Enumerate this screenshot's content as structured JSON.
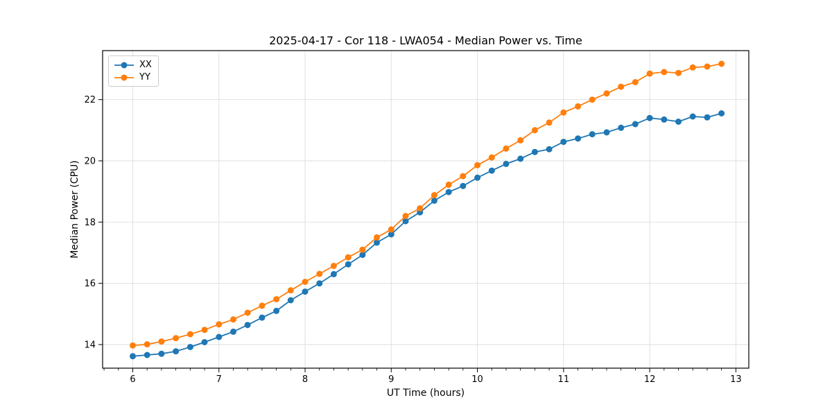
{
  "chart_data": {
    "type": "line",
    "title": "2025-04-17 - Cor 118 - LWA054 - Median Power vs. Time",
    "xlabel": "UT Time (hours)",
    "ylabel": "Median Power (CPU)",
    "xlim": [
      5.65,
      13.15
    ],
    "ylim": [
      13.23,
      23.6
    ],
    "x_ticks": [
      6,
      7,
      8,
      9,
      10,
      11,
      12,
      13
    ],
    "y_ticks": [
      14,
      16,
      18,
      20,
      22
    ],
    "x_minor_step": 0.166667,
    "grid": true,
    "legend_position": "upper left",
    "grid_color": "#dddddd",
    "spine_color": "#000000",
    "x": [
      6.0,
      6.167,
      6.333,
      6.5,
      6.667,
      6.833,
      7.0,
      7.167,
      7.333,
      7.5,
      7.667,
      7.833,
      8.0,
      8.167,
      8.333,
      8.5,
      8.667,
      8.833,
      9.0,
      9.167,
      9.333,
      9.5,
      9.667,
      9.833,
      10.0,
      10.167,
      10.333,
      10.5,
      10.667,
      10.833,
      11.0,
      11.167,
      11.333,
      11.5,
      11.667,
      11.833,
      12.0,
      12.167,
      12.333,
      12.5,
      12.667,
      12.833
    ],
    "series": [
      {
        "name": "XX",
        "color": "#1f77b4",
        "values": [
          13.62,
          13.66,
          13.7,
          13.78,
          13.92,
          14.08,
          14.25,
          14.42,
          14.64,
          14.88,
          15.1,
          15.45,
          15.73,
          16.0,
          16.3,
          16.62,
          16.93,
          17.33,
          17.6,
          18.03,
          18.32,
          18.7,
          18.98,
          19.18,
          19.45,
          19.68,
          19.9,
          20.07,
          20.29,
          20.38,
          20.62,
          20.73,
          20.87,
          20.93,
          21.08,
          21.2,
          21.4,
          21.35,
          21.28,
          21.45,
          21.42,
          21.55
        ]
      },
      {
        "name": "YY",
        "color": "#ff7f0e",
        "values": [
          13.97,
          14.01,
          14.1,
          14.21,
          14.34,
          14.48,
          14.66,
          14.82,
          15.04,
          15.27,
          15.48,
          15.77,
          16.05,
          16.31,
          16.57,
          16.85,
          17.1,
          17.5,
          17.76,
          18.2,
          18.45,
          18.88,
          19.22,
          19.5,
          19.86,
          20.11,
          20.4,
          20.67,
          21.0,
          21.25,
          21.58,
          21.78,
          22.0,
          22.2,
          22.42,
          22.57,
          22.85,
          22.9,
          22.87,
          23.05,
          23.08,
          23.17
        ]
      }
    ]
  }
}
